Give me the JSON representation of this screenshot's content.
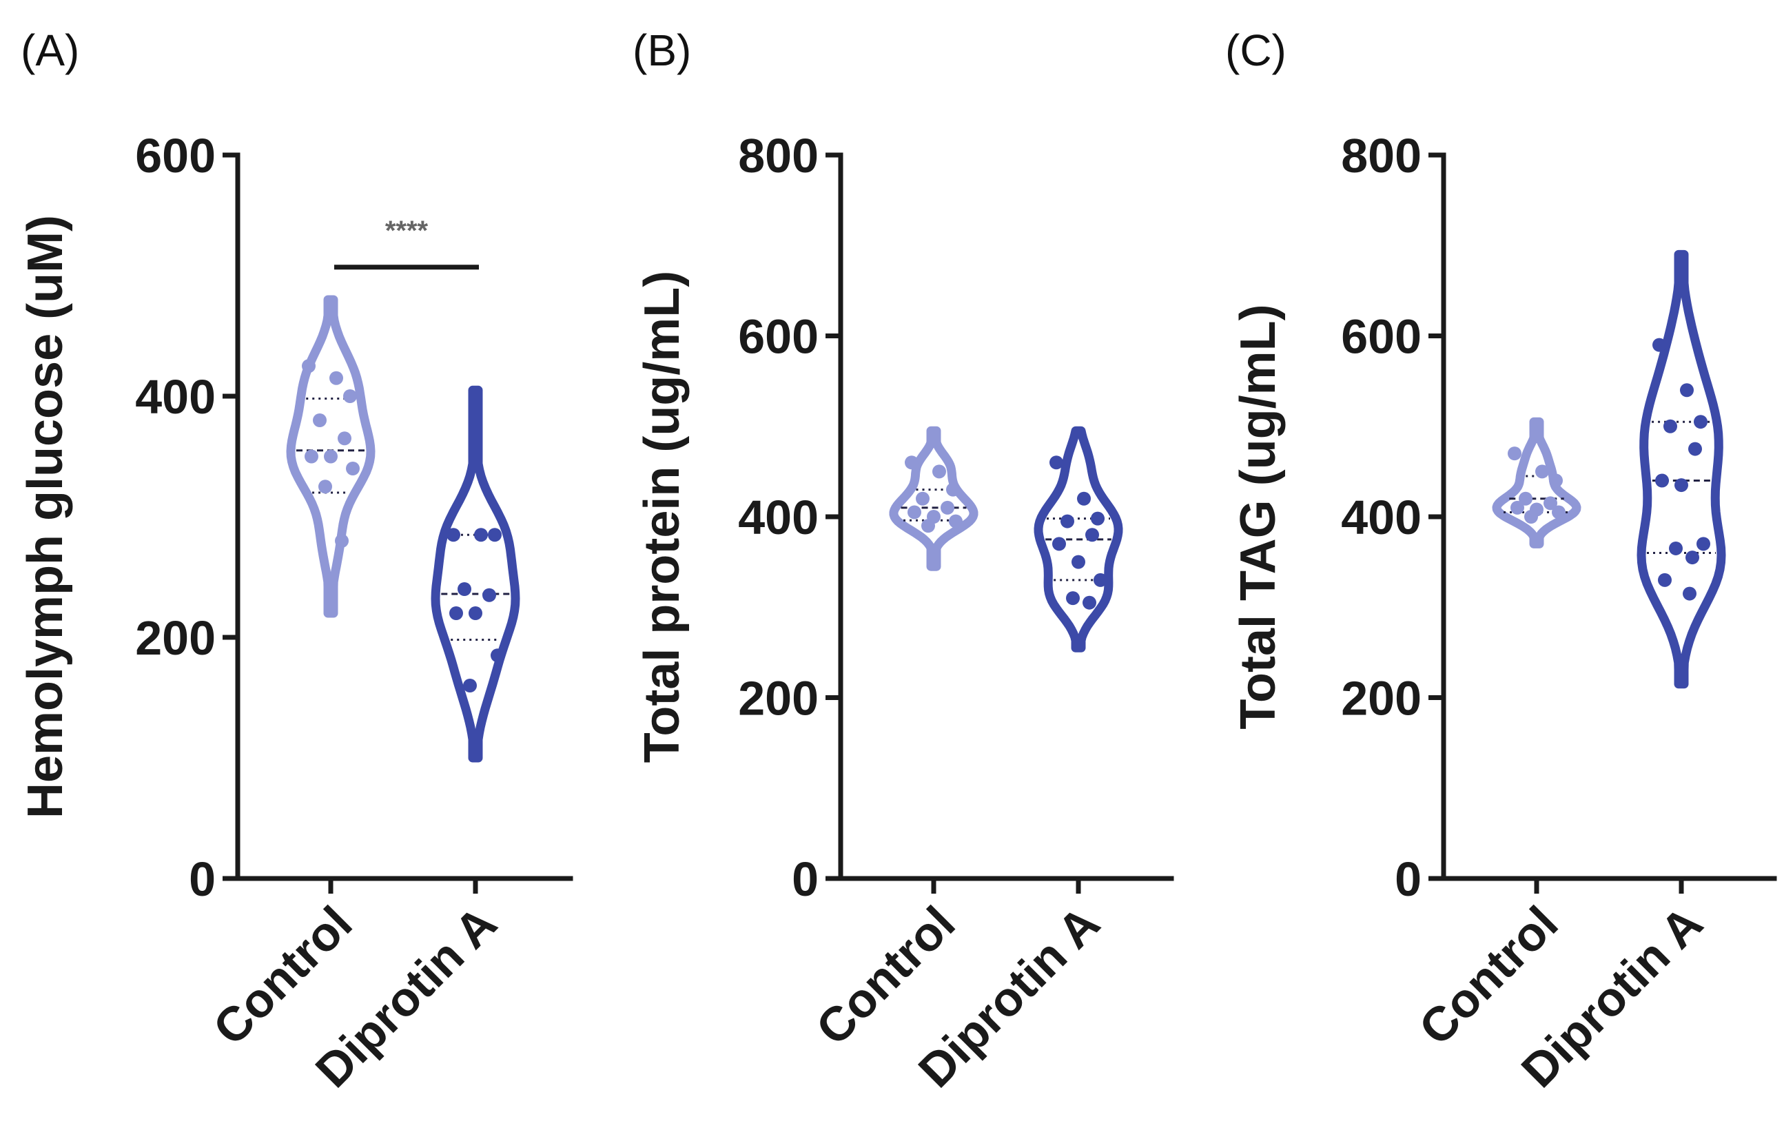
{
  "chart_data": [
    {
      "panel": "(A)",
      "type": "violin",
      "ylabel": "Hemolymph glucose (uM)",
      "ylim": [
        0,
        600
      ],
      "yticks": [
        0,
        200,
        400,
        600
      ],
      "categories": [
        "Control",
        "Diprotin A"
      ],
      "series": [
        {
          "name": "Control",
          "color": "#8f97d6",
          "range": [
            220,
            480
          ],
          "median": 355,
          "q1": 320,
          "q3": 398,
          "points": [
            425,
            415,
            400,
            380,
            365,
            350,
            350,
            340,
            325,
            280
          ]
        },
        {
          "name": "Diprotin A",
          "color": "#3c4aa8",
          "range": [
            100,
            405
          ],
          "median": 236,
          "q1": 198,
          "q3": 285,
          "points": [
            285,
            285,
            285,
            240,
            235,
            220,
            220,
            185,
            160
          ]
        }
      ],
      "significance": {
        "label": "****",
        "between": [
          "Control",
          "Diprotin A"
        ]
      }
    },
    {
      "panel": "(B)",
      "type": "violin",
      "ylabel": "Total protein (ug/mL)",
      "ylim": [
        0,
        800
      ],
      "yticks": [
        0,
        200,
        400,
        600,
        800
      ],
      "categories": [
        "Control",
        "Diprotin A"
      ],
      "series": [
        {
          "name": "Control",
          "color": "#8f97d6",
          "range": [
            345,
            495
          ],
          "median": 410,
          "q1": 396,
          "q3": 430,
          "points": [
            460,
            450,
            430,
            420,
            410,
            405,
            400,
            395,
            390
          ]
        },
        {
          "name": "Diprotin A",
          "color": "#3c4aa8",
          "range": [
            255,
            495
          ],
          "median": 375,
          "q1": 330,
          "q3": 398,
          "points": [
            460,
            420,
            398,
            395,
            380,
            370,
            350,
            330,
            310,
            305
          ]
        }
      ]
    },
    {
      "panel": "(C)",
      "type": "violin",
      "ylabel": "Total TAG (ug/mL)",
      "ylim": [
        0,
        800
      ],
      "yticks": [
        0,
        200,
        400,
        600,
        800
      ],
      "categories": [
        "Control",
        "Diprotin A"
      ],
      "series": [
        {
          "name": "Control",
          "color": "#8f97d6",
          "range": [
            370,
            505
          ],
          "median": 420,
          "q1": 405,
          "q3": 445,
          "points": [
            470,
            450,
            440,
            420,
            415,
            410,
            408,
            405,
            400
          ]
        },
        {
          "name": "Diprotin A",
          "color": "#3c4aa8",
          "range": [
            215,
            690
          ],
          "median": 440,
          "q1": 360,
          "q3": 505,
          "points": [
            590,
            540,
            505,
            500,
            475,
            440,
            435,
            370,
            365,
            355,
            330,
            315
          ]
        }
      ]
    }
  ]
}
